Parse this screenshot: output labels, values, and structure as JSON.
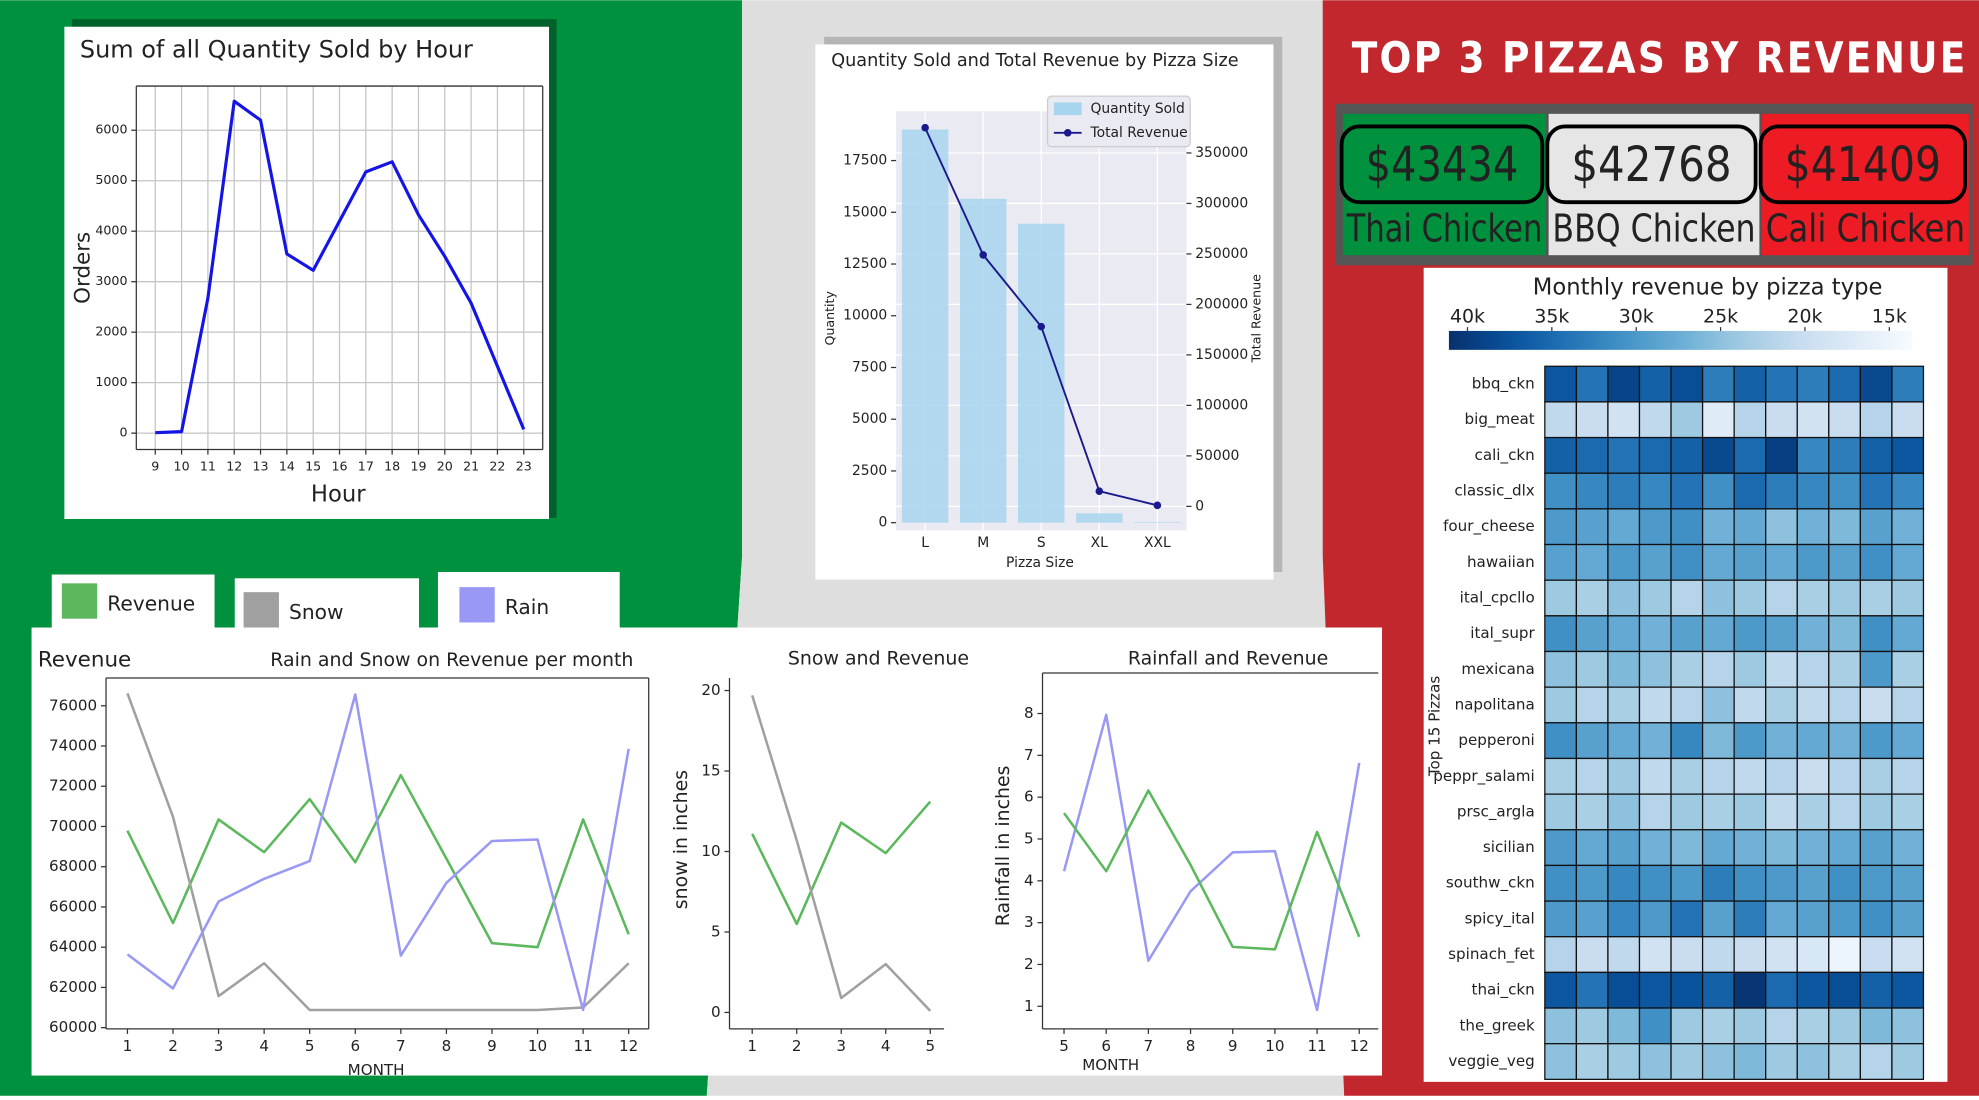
{
  "chart_data": [
    {
      "type": "line",
      "title": "Sum of all Quantity Sold by Hour",
      "xlabel": "Hour",
      "ylabel": "Orders",
      "x": [
        9,
        10,
        11,
        12,
        13,
        14,
        15,
        16,
        17,
        18,
        19,
        20,
        21,
        22,
        23
      ],
      "values": [
        10,
        30,
        2675,
        6575,
        6200,
        3550,
        3225,
        4200,
        5175,
        5375,
        4325,
        3500,
        2575,
        1325,
        75
      ],
      "color": "#1414e6",
      "xlim": [
        8.28,
        23.72
      ],
      "ylim": [
        -325,
        6875
      ],
      "xticks": [
        9,
        10,
        11,
        12,
        13,
        14,
        15,
        16,
        17,
        18,
        19,
        20,
        21,
        22,
        23
      ],
      "yticks": [
        0,
        1000,
        2000,
        3000,
        4000,
        5000,
        6000
      ],
      "grid": true
    },
    {
      "type": "bar",
      "title": "Quantity Sold and Total Revenue by Pizza Size",
      "xlabel": "Pizza Size",
      "ylabel": "Quantity",
      "y2label": "Total Revenue",
      "categories": [
        "L",
        "M",
        "S",
        "XL",
        "XXL"
      ],
      "series": [
        {
          "name": "Quantity Sold",
          "type": "bar",
          "color": "#a7d5ee",
          "values": [
            19000,
            15650,
            14450,
            450,
            30
          ]
        },
        {
          "name": "Total Revenue",
          "type": "line",
          "axis": "y2",
          "color": "#1a1a8c",
          "values": [
            375000,
            249000,
            178000,
            15000,
            1000
          ]
        }
      ],
      "ylim": [
        -370,
        19880
      ],
      "yticks": [
        0,
        2500,
        5000,
        7500,
        10000,
        12500,
        15000,
        17500
      ],
      "y2lim": [
        -23750,
        391250
      ],
      "y2ticks": [
        0,
        50000,
        100000,
        150000,
        200000,
        250000,
        300000,
        350000
      ],
      "grid": true,
      "legend": "upper-right"
    },
    {
      "type": "line",
      "title": "Rain and Snow on Revenue per month",
      "ylabel": "Revenue",
      "xlabel": "MONTH",
      "x": [
        1,
        2,
        3,
        4,
        5,
        6,
        7,
        8,
        9,
        10,
        11,
        12
      ],
      "series": [
        {
          "name": "Revenue",
          "color": "#5cb85c",
          "values": [
            69790,
            65200,
            70350,
            68720,
            71360,
            68220,
            72550,
            68400,
            64200,
            64000,
            70350,
            64640
          ]
        },
        {
          "name": "Snow",
          "color": "#a0a0a0",
          "values": [
            76620,
            70480,
            61570,
            63200,
            60880,
            60880,
            60880,
            60880,
            60880,
            60880,
            61000,
            63200
          ]
        },
        {
          "name": "Rain",
          "color": "#9999f5",
          "values": [
            63640,
            61950,
            66270,
            67400,
            68280,
            76560,
            63580,
            67200,
            69280,
            69350,
            60880,
            73860
          ]
        }
      ],
      "xlim": [
        0.53,
        12.44
      ],
      "ylim": [
        59940,
        77380
      ],
      "xticks": [
        1,
        2,
        3,
        4,
        5,
        6,
        7,
        8,
        9,
        10,
        11,
        12
      ],
      "yticks": [
        60000,
        62000,
        64000,
        66000,
        68000,
        70000,
        72000,
        74000,
        76000
      ],
      "grid": false
    },
    {
      "type": "line",
      "title": "Snow and Revenue",
      "ylabel": "snow in inches",
      "x": [
        1,
        2,
        3,
        4,
        5
      ],
      "series": [
        {
          "color": "#5cb85c",
          "values": [
            11.1,
            5.5,
            11.8,
            9.9,
            13.1
          ]
        },
        {
          "color": "#a0a0a0",
          "values": [
            19.7,
            10.7,
            0.9,
            3.0,
            0.1
          ]
        }
      ],
      "xlim": [
        0.49,
        5.31
      ],
      "ylim": [
        -1.02,
        20.78
      ],
      "xticks": [
        1,
        2,
        3,
        4,
        5
      ],
      "yticks": [
        0,
        5,
        10,
        15,
        20
      ],
      "grid": false
    },
    {
      "type": "line",
      "title": "Rainfall and Revenue",
      "xlabel": "MONTH",
      "ylabel": "Rainfall in inches",
      "x": [
        5,
        6,
        7,
        8,
        9,
        10,
        11,
        12
      ],
      "series": [
        {
          "color": "#9999f5",
          "values": [
            4.23,
            7.97,
            2.09,
            3.75,
            4.68,
            4.71,
            0.91,
            6.82
          ]
        },
        {
          "color": "#5cb85c",
          "values": [
            5.62,
            4.23,
            6.16,
            4.38,
            2.42,
            2.36,
            5.17,
            2.66
          ]
        }
      ],
      "xlim": [
        4.49,
        12.45
      ],
      "ylim": [
        0.46,
        8.97
      ],
      "xticks": [
        5,
        6,
        7,
        8,
        9,
        10,
        11,
        12
      ],
      "yticks": [
        1,
        2,
        3,
        4,
        5,
        6,
        7,
        8
      ],
      "grid": false
    },
    {
      "type": "heatmap",
      "title": "Monthly revenue by pizza type",
      "ylabel": "Top 15 Pizzas",
      "colormap": "Blues",
      "categories": [
        "bbq_ckn",
        "big_meat",
        "cali_ckn",
        "classic_dlx",
        "four_cheese",
        "hawaiian",
        "ital_cpcllo",
        "ital_supr",
        "mexicana",
        "napolitana",
        "pepperoni",
        "peppr_salami",
        "prsc_argla",
        "sicilian",
        "southw_ckn",
        "spicy_ital",
        "spinach_fet",
        "thai_ckn",
        "the_greek",
        "veggie_veg"
      ],
      "values": [
        [
          37000,
          34000,
          39000,
          36000,
          38000,
          33000,
          36000,
          34000,
          33000,
          35000,
          38500,
          33000
        ],
        [
          21000,
          20000,
          19000,
          21000,
          24000,
          17000,
          22000,
          20000,
          19000,
          20000,
          22000,
          20000
        ],
        [
          36000,
          35000,
          34000,
          35000,
          36000,
          38500,
          35000,
          39500,
          32000,
          33000,
          36000,
          37000
        ],
        [
          31000,
          32000,
          33000,
          32000,
          34000,
          31000,
          35000,
          33000,
          32000,
          31000,
          34000,
          32000
        ],
        [
          30000,
          29000,
          28000,
          30000,
          31000,
          27000,
          28000,
          25000,
          27000,
          26000,
          29000,
          27000
        ],
        [
          29000,
          28000,
          30000,
          29000,
          31000,
          28000,
          29000,
          28000,
          30000,
          29000,
          31000,
          28000
        ],
        [
          24000,
          23000,
          25000,
          24000,
          22000,
          25000,
          24000,
          22000,
          23000,
          24000,
          23000,
          24000
        ],
        [
          31000,
          29000,
          28000,
          27000,
          29000,
          28000,
          30000,
          29000,
          27000,
          26000,
          31000,
          28000
        ],
        [
          25000,
          24000,
          26000,
          25000,
          23000,
          22000,
          24000,
          21000,
          22000,
          23000,
          30000,
          23000
        ],
        [
          24000,
          22000,
          23000,
          21000,
          22000,
          25000,
          21000,
          23000,
          21000,
          22000,
          20000,
          22000
        ],
        [
          31000,
          29000,
          28000,
          27000,
          32000,
          26000,
          30000,
          27000,
          28000,
          27000,
          30000,
          28000
        ],
        [
          23000,
          22000,
          24000,
          21000,
          23000,
          22000,
          21000,
          22000,
          20000,
          22000,
          23000,
          22000
        ],
        [
          24000,
          23000,
          25000,
          22000,
          24000,
          23000,
          24000,
          21000,
          23000,
          22000,
          24000,
          23000
        ],
        [
          30000,
          28000,
          29000,
          27000,
          26000,
          28000,
          27000,
          26000,
          27000,
          28000,
          29000,
          27000
        ],
        [
          31000,
          30000,
          32000,
          31000,
          30000,
          33000,
          31000,
          30000,
          29000,
          31000,
          30000,
          29000
        ],
        [
          30000,
          29000,
          32000,
          30000,
          34000,
          29000,
          33000,
          28000,
          29000,
          30000,
          31000,
          29000
        ],
        [
          22000,
          20000,
          21000,
          19000,
          20000,
          21000,
          20000,
          19000,
          18000,
          15000,
          20000,
          19000
        ],
        [
          37000,
          34000,
          38000,
          37000,
          37500,
          36000,
          40500,
          35000,
          37000,
          38000,
          36000,
          37000
        ],
        [
          25000,
          24000,
          26000,
          31000,
          24000,
          23000,
          24000,
          22000,
          23000,
          24000,
          26000,
          25000
        ],
        [
          25000,
          23000,
          24000,
          25000,
          24000,
          25000,
          26000,
          24000,
          25000,
          23000,
          22000,
          24000
        ]
      ],
      "clim": [
        41100,
        13650
      ],
      "cticks": [
        {
          "value": 40000,
          "label": "40k"
        },
        {
          "value": 35000,
          "label": "35k"
        },
        {
          "value": 30000,
          "label": "30k"
        },
        {
          "value": 25000,
          "label": "25k"
        },
        {
          "value": 20000,
          "label": "20k"
        },
        {
          "value": 15000,
          "label": "15k"
        }
      ]
    }
  ],
  "kpi": {
    "title": "TOP 3 PIZZAS BY REVENUE",
    "cards": [
      {
        "value": "$43434",
        "label": "Thai Chicken",
        "color": "#00913f"
      },
      {
        "value": "$42768",
        "label": "BBQ Chicken",
        "color": "#e6e6e6"
      },
      {
        "value": "$41409",
        "label": "Cali Chicken",
        "color": "#ed1c24"
      }
    ]
  }
}
